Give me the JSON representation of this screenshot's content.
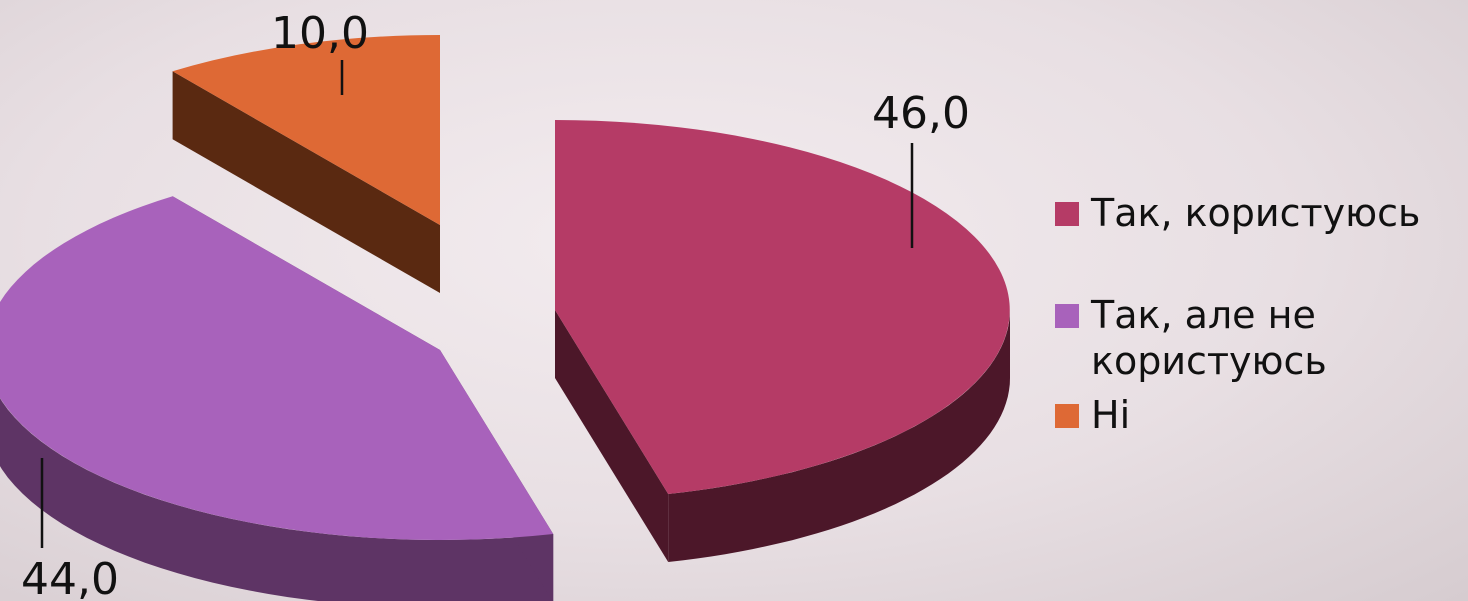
{
  "chart_data": {
    "type": "pie",
    "title": "",
    "legend_position": "right",
    "series": [
      {
        "name": "Так, користуюсь",
        "value": 46.0,
        "label": "46,0",
        "color": "#b53b66",
        "side_color": "#4c1729"
      },
      {
        "name": "Так, але не користуюсь",
        "value": 44.0,
        "label": "44,0",
        "color": "#a862bb",
        "side_color": "#5e3465"
      },
      {
        "name": "Ні",
        "value": 10.0,
        "label": "10,0",
        "color": "#de6935",
        "side_color": "#5a2911"
      }
    ]
  }
}
